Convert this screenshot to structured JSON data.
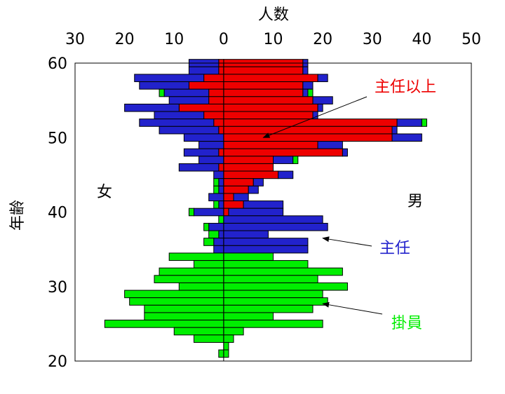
{
  "chart_data": {
    "type": "bar",
    "orientation": "horizontal",
    "stacked": true,
    "xlabel": "人数",
    "ylabel": "年齢",
    "xlim": [
      -30,
      50
    ],
    "x_ticks": [
      {
        "value": -30,
        "label": "30"
      },
      {
        "value": -20,
        "label": "20"
      },
      {
        "value": -10,
        "label": "10"
      },
      {
        "value": 0,
        "label": "0"
      },
      {
        "value": 10,
        "label": "10"
      },
      {
        "value": 20,
        "label": "20"
      },
      {
        "value": 30,
        "label": "30"
      },
      {
        "value": 40,
        "label": "40"
      },
      {
        "value": 50,
        "label": "50"
      }
    ],
    "ylim": [
      20,
      60
    ],
    "y_ticks": [
      20,
      30,
      40,
      50,
      60
    ],
    "grid": false,
    "side_labels": {
      "female": "女",
      "male": "男"
    },
    "series_colors": {
      "掛員": "#00ee00",
      "主任": "#2222cc",
      "主任以上": "#ee0000"
    },
    "annotations": [
      {
        "text": "主任以上",
        "series": "主任以上",
        "color": "#ee0000",
        "arrow_to_age": 50,
        "arrow_to_x": 8
      },
      {
        "text": "主任",
        "series": "主任",
        "color": "#2222cc",
        "arrow_to_age": 36.5,
        "arrow_to_x": 20
      },
      {
        "text": "掛員",
        "series": "掛員",
        "color": "#00ee00",
        "arrow_to_age": 27.7,
        "arrow_to_x": 20
      }
    ],
    "ages": [
      60,
      59,
      58,
      57,
      56,
      55,
      54,
      53,
      52,
      51,
      50,
      49,
      48,
      47,
      46,
      45,
      44,
      43,
      42,
      41,
      40,
      39,
      38,
      37,
      36,
      35,
      34,
      33,
      32,
      31,
      30,
      29,
      28,
      27,
      26,
      25,
      24,
      23,
      22,
      21
    ],
    "female": {
      "掛員": [
        0,
        0,
        0,
        0,
        1,
        0,
        0,
        0,
        0,
        0,
        0,
        0,
        0,
        0,
        0,
        0,
        1,
        1,
        0,
        1,
        1,
        1,
        1,
        2,
        2,
        0,
        11,
        6,
        13,
        14,
        9,
        20,
        19,
        16,
        16,
        24,
        10,
        6,
        0,
        1
      ],
      "主任": [
        6,
        6,
        14,
        10,
        9,
        8,
        11,
        10,
        15,
        12,
        8,
        5,
        7,
        5,
        8,
        2,
        1,
        1,
        3,
        1,
        6,
        0,
        3,
        1,
        2,
        2,
        0,
        0,
        0,
        0,
        0,
        0,
        0,
        0,
        0,
        0,
        0,
        0,
        0,
        0
      ],
      "主任以上": [
        1,
        1,
        4,
        7,
        3,
        3,
        9,
        4,
        2,
        1,
        0,
        0,
        1,
        0,
        1,
        0,
        0,
        0,
        0,
        0,
        0,
        0,
        0,
        0,
        0,
        0,
        0,
        0,
        0,
        0,
        0,
        0,
        0,
        0,
        0,
        0,
        0,
        0,
        0,
        0
      ]
    },
    "male": {
      "主任以上": [
        16,
        16,
        19,
        16,
        16,
        18,
        19,
        18,
        35,
        34,
        34,
        19,
        24,
        10,
        10,
        11,
        6,
        5,
        2,
        4,
        1,
        0,
        0,
        0,
        0,
        0,
        0,
        0,
        0,
        0,
        0,
        0,
        0,
        0,
        0,
        0,
        0,
        0,
        0,
        0
      ],
      "主任": [
        1,
        1,
        2,
        2,
        1,
        4,
        1,
        1,
        5,
        1,
        6,
        5,
        1,
        4,
        0,
        3,
        2,
        2,
        3,
        8,
        11,
        20,
        21,
        9,
        17,
        17,
        0,
        0,
        0,
        0,
        0,
        0,
        0,
        0,
        0,
        0,
        0,
        0,
        0,
        0
      ],
      "掛員": [
        0,
        0,
        0,
        0,
        1,
        0,
        0,
        0,
        1,
        0,
        0,
        0,
        0,
        1,
        0,
        0,
        0,
        0,
        0,
        0,
        0,
        0,
        0,
        0,
        0,
        0,
        10,
        17,
        24,
        19,
        25,
        20,
        21,
        18,
        10,
        20,
        4,
        2,
        1,
        1
      ]
    }
  }
}
